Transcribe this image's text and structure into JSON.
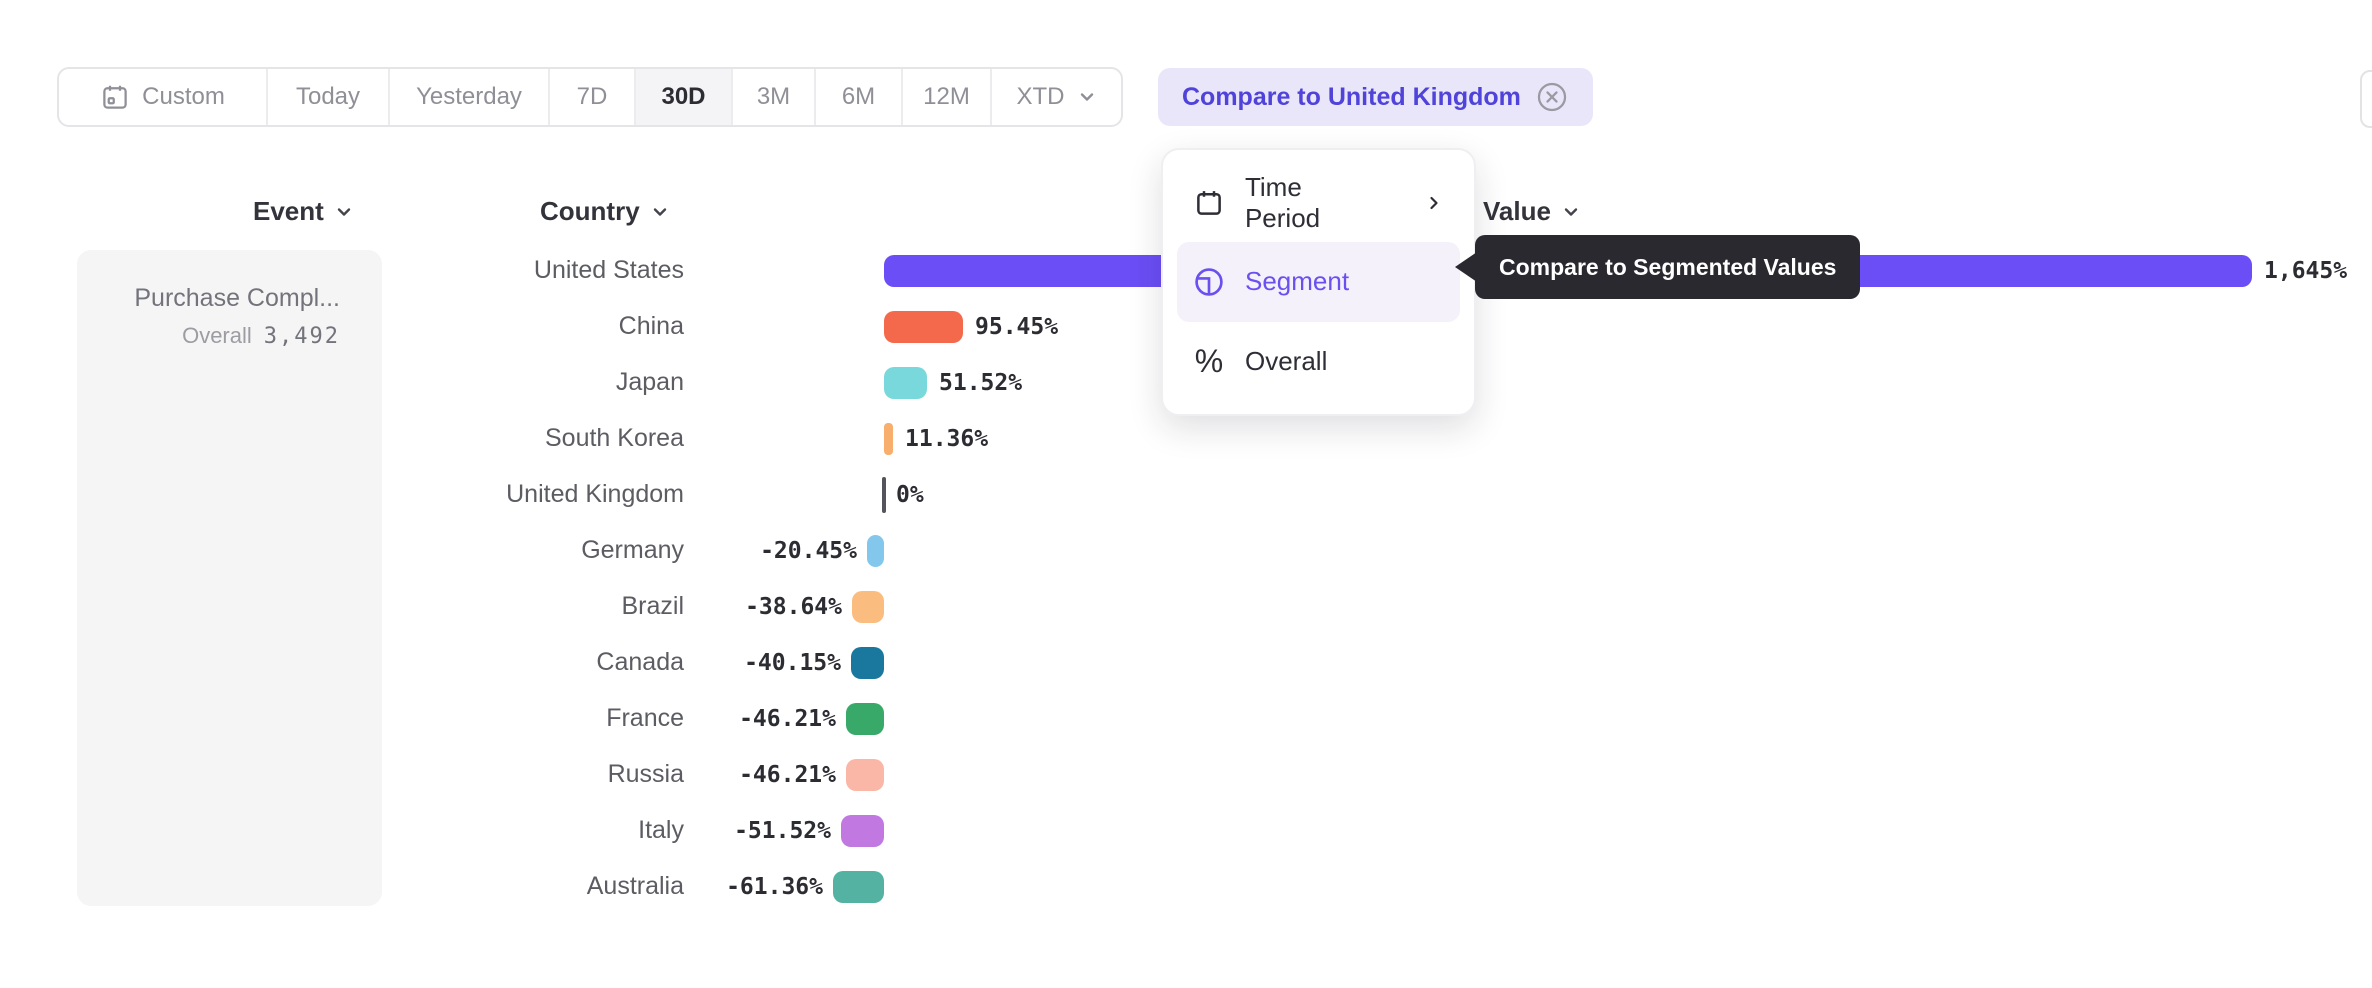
{
  "toolbar": {
    "items": [
      {
        "label": "Custom",
        "icon": "calendar"
      },
      {
        "label": "Today"
      },
      {
        "label": "Yesterday"
      },
      {
        "label": "7D"
      },
      {
        "label": "30D",
        "selected": true
      },
      {
        "label": "3M"
      },
      {
        "label": "6M"
      },
      {
        "label": "12M"
      },
      {
        "label": "XTD",
        "icon": "chevron-down"
      }
    ],
    "selected": "30D"
  },
  "compare": {
    "label": "Compare to United Kingdom",
    "close_icon": "circle-x"
  },
  "headers": {
    "event": "Event",
    "country": "Country",
    "value": "Value"
  },
  "panel": {
    "title": "Purchase Compl...",
    "overall_label": "Overall",
    "overall_value": "3,492"
  },
  "menu": {
    "items": [
      {
        "label": "Time Period",
        "icon": "calendar",
        "has_submenu": true
      },
      {
        "label": "Segment",
        "icon": "segment",
        "active": true
      },
      {
        "label": "Overall",
        "icon": "percent"
      }
    ]
  },
  "tooltip": {
    "text": "Compare to Segmented Values"
  },
  "colors": {
    "accent_purple": "#6b4ef5",
    "compare_bg": "#e9e6fa",
    "compare_text": "#4f43da",
    "menu_highlight": "#f4f1fb",
    "tooltip_bg": "#29292f",
    "panel_bg": "#f5f5f6"
  },
  "chart_data": {
    "type": "bar",
    "orientation": "horizontal",
    "unit": "%",
    "baseline_category": "United Kingdom",
    "categories": [
      "United States",
      "China",
      "Japan",
      "South Korea",
      "United Kingdom",
      "Germany",
      "Brazil",
      "Canada",
      "France",
      "Russia",
      "Italy",
      "Australia"
    ],
    "values": [
      1645,
      95.45,
      51.52,
      11.36,
      0,
      -20.45,
      -38.64,
      -40.15,
      -46.21,
      -46.21,
      -51.52,
      -61.36
    ],
    "labels": [
      "1,645%",
      "95.45%",
      "51.52%",
      "11.36%",
      "0%",
      "-20.45%",
      "-38.64%",
      "-40.15%",
      "-46.21%",
      "-46.21%",
      "-51.52%",
      "-61.36%"
    ],
    "colors": [
      "#6b4ef5",
      "#f4694c",
      "#78d8db",
      "#f8ae6c",
      "#54545c",
      "#84c7ec",
      "#fabd7f",
      "#1a789e",
      "#38a969",
      "#fab6a6",
      "#c179e1",
      "#54b2a3"
    ],
    "texture": [
      "none",
      "none",
      "none",
      "none",
      "tick",
      "dots-blue",
      "dots-orange",
      "none",
      "none",
      "none",
      "none",
      "none"
    ],
    "xlim_percent": [
      -100,
      1645
    ],
    "grid": false,
    "legend": false
  }
}
